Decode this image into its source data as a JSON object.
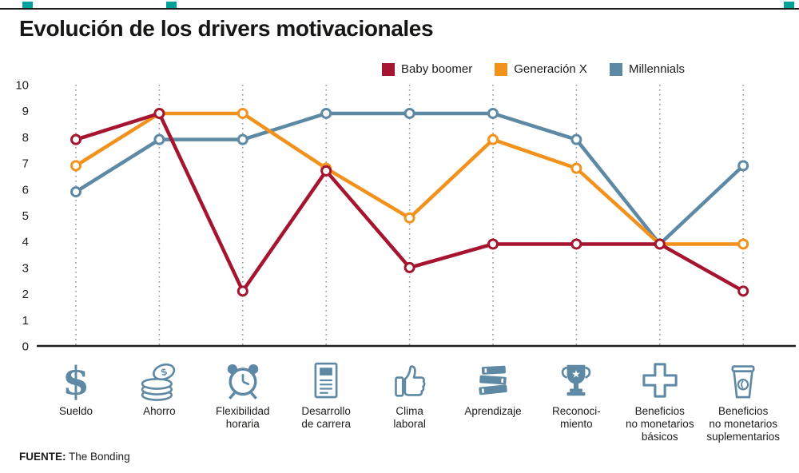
{
  "title": "Evolución de los drivers motivacionales",
  "source": {
    "label": "FUENTE:",
    "value": "The Bonding"
  },
  "colors": {
    "baby_boomer": "#a5152f",
    "generacion_x": "#f2921d",
    "millennials": "#5d89a4",
    "accent": "#00a29a",
    "grid": "#8c8c8c",
    "axis_line": "#1d1d1b",
    "text": "#1d1d1b",
    "icon": "#5d89a4",
    "background": "#ffffff"
  },
  "legend": [
    "Baby boomer",
    "Generación X",
    "Millennials"
  ],
  "chart_data": {
    "type": "line",
    "title": "Evolución de los drivers motivacionales",
    "ylim": [
      0,
      10
    ],
    "yticks": [
      0,
      1,
      2,
      3,
      4,
      5,
      6,
      7,
      8,
      9,
      10
    ],
    "grid": "vertical-dashed",
    "legend_position": "top",
    "categories": [
      {
        "label": "Sueldo",
        "label_lines": [
          "Sueldo"
        ],
        "icon": "dollar-icon"
      },
      {
        "label": "Ahorro",
        "label_lines": [
          "Ahorro"
        ],
        "icon": "coins-icon"
      },
      {
        "label": "Flexibilidad horaria",
        "label_lines": [
          "Flexibilidad",
          "horaria"
        ],
        "icon": "alarm-clock-icon"
      },
      {
        "label": "Desarrollo de carrera",
        "label_lines": [
          "Desarrollo",
          "de carrera"
        ],
        "icon": "document-icon"
      },
      {
        "label": "Clima laboral",
        "label_lines": [
          "Clima",
          "laboral"
        ],
        "icon": "thumbs-up-icon"
      },
      {
        "label": "Aprendizaje",
        "label_lines": [
          "Aprendizaje"
        ],
        "icon": "books-icon"
      },
      {
        "label": "Reconocimiento",
        "label_lines": [
          "Reconoci-",
          "miento"
        ],
        "icon": "trophy-icon"
      },
      {
        "label": "Beneficios no monetarios básicos",
        "label_lines": [
          "Beneficios",
          "no monetarios",
          "básicos"
        ],
        "icon": "medical-cross-icon"
      },
      {
        "label": "Beneficios no monetarios suplementarios",
        "label_lines": [
          "Beneficios",
          "no monetarios",
          "suplementarios"
        ],
        "icon": "coffee-cup-icon"
      }
    ],
    "series": [
      {
        "name": "Baby boomer",
        "color": "#a5152f",
        "values": [
          7.9,
          8.9,
          2.1,
          6.7,
          3.0,
          3.9,
          3.9,
          3.9,
          2.1
        ]
      },
      {
        "name": "Generación X",
        "color": "#f2921d",
        "values": [
          6.9,
          8.9,
          8.9,
          6.8,
          4.9,
          7.9,
          6.8,
          3.9,
          3.9
        ]
      },
      {
        "name": "Millennials",
        "color": "#5d89a4",
        "values": [
          5.9,
          7.9,
          7.9,
          8.9,
          8.9,
          8.9,
          7.9,
          3.9,
          6.9
        ]
      }
    ]
  }
}
